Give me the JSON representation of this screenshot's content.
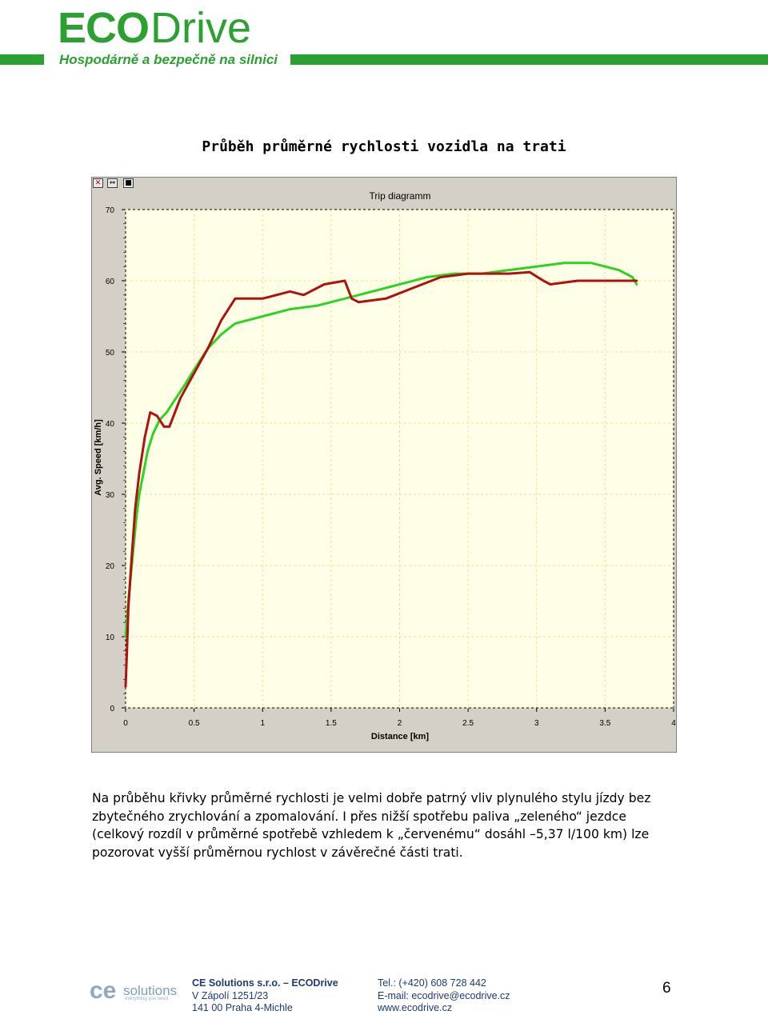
{
  "header": {
    "logo_eco": "ECO",
    "logo_drive": "Drive",
    "tagline": "Hospodárně a bezpečně na silnici",
    "brand_color": "#2aa131"
  },
  "title": "Průběh průměrné rychlosti vozidla na trati",
  "chart_window": {
    "buttons": [
      "close-icon",
      "arrows-icon",
      "stop-icon"
    ],
    "button_glyphs": [
      "✕",
      "⇔",
      "■"
    ]
  },
  "chart_data": {
    "type": "line",
    "title": "Trip diagramm",
    "xlabel": "Distance [km]",
    "ylabel": "Avg. Speed [km/h]",
    "xlim": [
      0,
      4
    ],
    "ylim": [
      0,
      70
    ],
    "x_ticks": [
      "0",
      "0.5",
      "1",
      "1.5",
      "2",
      "2.5",
      "3",
      "3.5",
      "4"
    ],
    "y_ticks": [
      "0",
      "10",
      "20",
      "30",
      "40",
      "50",
      "60",
      "70"
    ],
    "grid": true,
    "background": "#ffffe8",
    "grid_color": "#e8e0a0",
    "series": [
      {
        "color": "#2bd420",
        "points": [
          [
            0.0,
            10
          ],
          [
            0.02,
            15
          ],
          [
            0.05,
            21
          ],
          [
            0.08,
            27
          ],
          [
            0.1,
            30
          ],
          [
            0.13,
            33
          ],
          [
            0.16,
            36
          ],
          [
            0.2,
            38.5
          ],
          [
            0.25,
            40.5
          ],
          [
            0.3,
            41.5
          ],
          [
            0.35,
            43
          ],
          [
            0.42,
            45
          ],
          [
            0.5,
            47.5
          ],
          [
            0.6,
            50.5
          ],
          [
            0.7,
            52.5
          ],
          [
            0.8,
            54
          ],
          [
            1.0,
            55
          ],
          [
            1.2,
            56
          ],
          [
            1.4,
            56.5
          ],
          [
            1.6,
            57.5
          ],
          [
            1.8,
            58.5
          ],
          [
            2.0,
            59.5
          ],
          [
            2.2,
            60.5
          ],
          [
            2.4,
            61
          ],
          [
            2.6,
            61
          ],
          [
            2.8,
            61.5
          ],
          [
            3.0,
            62
          ],
          [
            3.2,
            62.5
          ],
          [
            3.4,
            62.5
          ],
          [
            3.6,
            61.5
          ],
          [
            3.7,
            60.5
          ],
          [
            3.73,
            59.5
          ]
        ]
      },
      {
        "color": "#b01010",
        "points": [
          [
            0.0,
            3
          ],
          [
            0.01,
            8
          ],
          [
            0.02,
            14
          ],
          [
            0.04,
            20
          ],
          [
            0.07,
            28
          ],
          [
            0.1,
            33
          ],
          [
            0.14,
            38
          ],
          [
            0.18,
            41.5
          ],
          [
            0.23,
            41
          ],
          [
            0.28,
            39.5
          ],
          [
            0.32,
            39.5
          ],
          [
            0.4,
            43.5
          ],
          [
            0.5,
            47
          ],
          [
            0.6,
            50.5
          ],
          [
            0.7,
            54.5
          ],
          [
            0.8,
            57.5
          ],
          [
            0.9,
            57.5
          ],
          [
            1.0,
            57.5
          ],
          [
            1.2,
            58.5
          ],
          [
            1.3,
            58
          ],
          [
            1.45,
            59.5
          ],
          [
            1.6,
            60
          ],
          [
            1.65,
            57.5
          ],
          [
            1.7,
            57
          ],
          [
            1.9,
            57.5
          ],
          [
            2.1,
            59
          ],
          [
            2.3,
            60.5
          ],
          [
            2.5,
            61
          ],
          [
            2.7,
            61
          ],
          [
            2.8,
            61
          ],
          [
            2.95,
            61.2
          ],
          [
            3.05,
            60
          ],
          [
            3.1,
            59.5
          ],
          [
            3.3,
            60
          ],
          [
            3.5,
            60
          ],
          [
            3.7,
            60
          ],
          [
            3.73,
            60
          ]
        ]
      }
    ]
  },
  "paragraph": "Na průběhu křivky průměrné rychlosti je velmi dobře patrný vliv plynulého stylu jízdy bez zbytečného zrychlování a zpomalování. I přes nižší spotřebu paliva „zeleného“ jezdce (celkový rozdíl v průměrné spotřebě vzhledem k „červenému“ dosáhl –5,37 l/100 km) lze pozorovat vyšší průměrnou rychlost v závěrečné části trati.",
  "footer": {
    "ce_logo_text": "solutions",
    "ce_logo_glyph": "ce",
    "ce_logo_sub": "everything you need",
    "company": "CE Solutions s.r.o. – ECODrive",
    "address1": "V Zápolí 1251/23",
    "address2": "141 00 Praha 4-Michle",
    "tel": "Tel.: (+420) 608 728 442",
    "email": "E-mail: ecodrive@ecodrive.cz",
    "web": "www.ecodrive.cz",
    "page_number": "6",
    "text_color": "#1f3a7a"
  }
}
